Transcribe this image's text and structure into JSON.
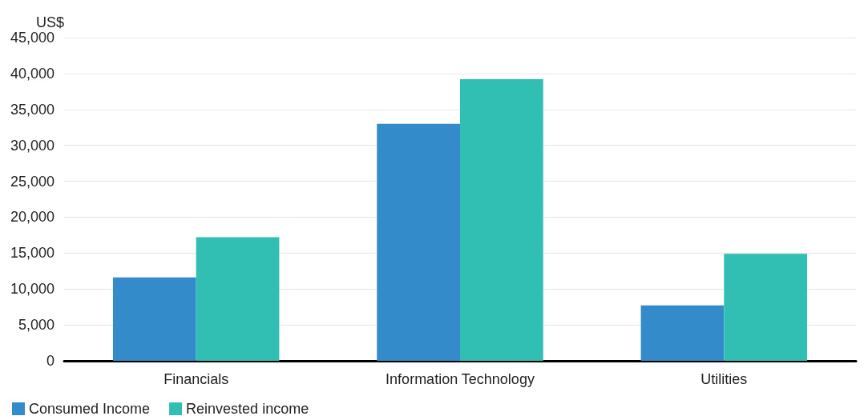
{
  "chart_data": {
    "type": "bar",
    "ylabel": "US$",
    "categories": [
      "Financials",
      "Information Technology",
      "Utilities"
    ],
    "series": [
      {
        "name": "Consumed Income",
        "color": "#348bca",
        "values": [
          11600,
          33000,
          7700
        ]
      },
      {
        "name": "Reinvested income",
        "color": "#32bfb3",
        "values": [
          17200,
          39200,
          14900
        ]
      }
    ],
    "ylim": [
      0,
      45000
    ],
    "yticks": [
      0,
      {
        "value": 5000,
        "label": "5,000"
      },
      {
        "value": 10000,
        "label": "10,000"
      },
      {
        "value": 15000,
        "label": "15,000"
      },
      {
        "value": 20000,
        "label": "20,000"
      },
      {
        "value": 25000,
        "label": "25,000"
      },
      {
        "value": 30000,
        "label": "30,000"
      },
      {
        "value": 35000,
        "label": "35,000"
      },
      {
        "value": 40000,
        "label": "40,000"
      },
      {
        "value": 45000,
        "label": "45,000"
      }
    ],
    "grid": "y",
    "legend": "bottom left"
  }
}
